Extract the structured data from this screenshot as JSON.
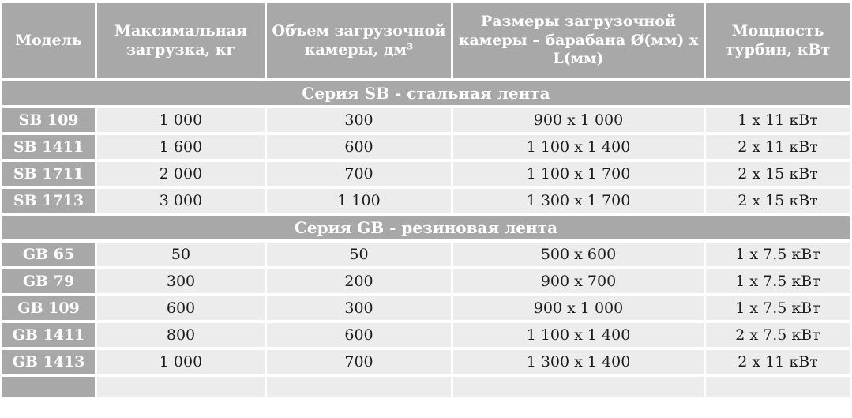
{
  "colors": {
    "header_bg": "#a8a8a8",
    "row_bg": "#ececec",
    "header_text": "#ffffff",
    "cell_text": "#1c1c1c"
  },
  "header": {
    "columns": [
      "Модель",
      "Максимальная загрузка, кг",
      "Объем загрузочной камеры, дм³",
      "Размеры загрузочной камеры – барабана Ø(мм) x L(мм)",
      "Мощность турбин, кВт"
    ]
  },
  "sections": [
    {
      "title": "Серия SB - стальная лента",
      "rows": [
        {
          "cells": [
            "SB 109",
            "1 000",
            "300",
            "900 x 1 000",
            "1 x 11 кВт"
          ]
        },
        {
          "cells": [
            "SB 1411",
            "1 600",
            "600",
            "1 100 x 1 400",
            "2 x 11 кВт"
          ]
        },
        {
          "cells": [
            "SB 1711",
            "2 000",
            "700",
            "1 100 x 1 700",
            "2 x 15 кВт"
          ]
        },
        {
          "cells": [
            "SB 1713",
            "3 000",
            "1 100",
            "1 300 x 1 700",
            "2 x 15 кВт"
          ]
        }
      ]
    },
    {
      "title": "Серия GB - резиновая лента",
      "rows": [
        {
          "cells": [
            "GB 65",
            "50",
            "50",
            "500 x 600",
            "1 x 7.5 кВт"
          ]
        },
        {
          "cells": [
            "GB 79",
            "300",
            "200",
            "900 x 700",
            "1 x 7.5 кВт"
          ]
        },
        {
          "cells": [
            "GB 109",
            "600",
            "300",
            "900 x 1 000",
            "1 x 7.5 кВт"
          ]
        },
        {
          "cells": [
            "GB 1411",
            "800",
            "600",
            "1 100 x 1 400",
            "2 x 7.5 кВт"
          ]
        },
        {
          "cells": [
            "GB 1413",
            "1 000",
            "700",
            "1 300 x 1 400",
            "2 x 11 кВт"
          ]
        }
      ]
    }
  ]
}
